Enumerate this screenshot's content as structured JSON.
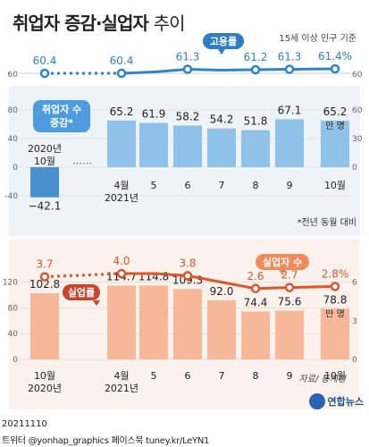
{
  "header": {
    "title_bold": "취업자 증감·실업자",
    "title_light": "추이",
    "subtitle": "15세 이상 인구 기준"
  },
  "footer": {
    "date": "20211110",
    "credit": "트위터 @yonhap_graphics  페이스북 tuney.kr/LeYN1",
    "source": "자료/ 통계청",
    "logo": "연합뉴스",
    "footnote": "*전년 동월 대비"
  },
  "colors": {
    "employment_bar": "#8ec2e8",
    "employment_neg_bar": "#4a8fd0",
    "employment_line": "#2e84c8",
    "unemployed_bar": "#f7b89a",
    "unemployment_line": "#d9562e",
    "grid": "#cccccc"
  },
  "chart_data": [
    {
      "type": "line",
      "name": "employment_rate",
      "legend": "고용률",
      "categories": [
        "2020년 10월",
        "4월 2021년",
        "5",
        "6",
        "7",
        "8",
        "9",
        "10월"
      ],
      "values": [
        60.4,
        60.4,
        60.7,
        61.3,
        61.1,
        61.2,
        61.3,
        61.4
      ],
      "labels": [
        "60.4",
        "60.4",
        "",
        "61.3",
        "",
        "61.2",
        "61.3",
        "61.4%"
      ],
      "axis_labels": [
        "60",
        "60"
      ]
    },
    {
      "type": "bar",
      "name": "employment_change",
      "legend": "취업자 수 증감*",
      "categories": [
        "2020년 10월",
        "4월 2021년",
        "5",
        "6",
        "7",
        "8",
        "9",
        "10월"
      ],
      "values": [
        -42.1,
        65.2,
        61.9,
        58.2,
        54.2,
        51.8,
        67.1,
        65.2
      ],
      "labels": [
        "-42.1",
        "65.2",
        "61.9",
        "58.2",
        "54.2",
        "51.8",
        "67.1",
        "65.2"
      ],
      "unit": "만 명",
      "ylim": [
        -40,
        80
      ],
      "left_ticks": [
        "80",
        "40",
        "0",
        "-40"
      ],
      "right_ticks": [
        "60",
        "30",
        "0"
      ],
      "gap_marker": "⋯⋯"
    },
    {
      "type": "bar",
      "name": "unemployed",
      "legend": "실업자 수",
      "categories": [
        "10월 2020년",
        "4월 2021년",
        "5",
        "6",
        "7",
        "8",
        "9",
        "10월"
      ],
      "values": [
        102.8,
        114.7,
        114.8,
        109.3,
        92.0,
        74.4,
        75.6,
        78.8
      ],
      "labels": [
        "102.8",
        "114.7",
        "114.8",
        "109.3",
        "92.0",
        "74.4",
        "75.6",
        "78.8"
      ],
      "unit": "만 명",
      "ylim": [
        0,
        120
      ],
      "left_ticks": [
        "120",
        "80",
        "40",
        "0"
      ],
      "right_ticks": [
        "6",
        "3",
        "0"
      ]
    },
    {
      "type": "line",
      "name": "unemployment_rate",
      "legend": "실업률",
      "categories": [
        "10월 2020년",
        "4월 2021년",
        "5",
        "6",
        "7",
        "8",
        "9",
        "10월"
      ],
      "values": [
        3.7,
        4.0,
        4.0,
        3.8,
        3.2,
        2.6,
        2.7,
        2.8
      ],
      "labels": [
        "3.7",
        "4.0",
        "",
        "3.8",
        "",
        "2.6",
        "2.7",
        "2.8%"
      ],
      "ylim": [
        0,
        6
      ]
    }
  ]
}
